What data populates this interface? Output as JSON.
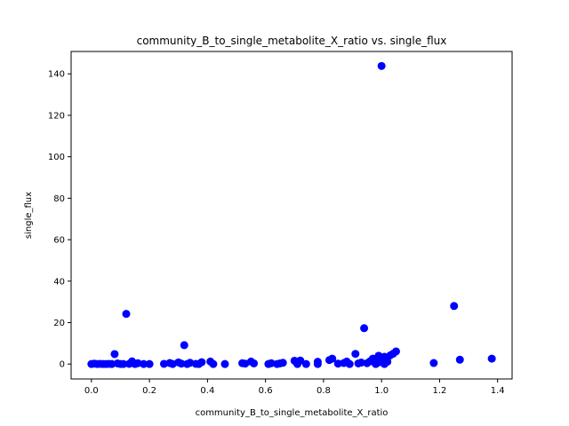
{
  "chart_data": {
    "type": "scatter",
    "title": "community_B_to_single_metabolite_X_ratio vs. single_flux",
    "xlabel": "community_B_to_single_metabolite_X_ratio",
    "ylabel": "single_flux",
    "xlim": [
      -0.07,
      1.45
    ],
    "ylim": [
      -7.2,
      150.8
    ],
    "xticks": [
      0.0,
      0.2,
      0.4,
      0.6,
      0.8,
      1.0,
      1.2,
      1.4
    ],
    "xtick_labels": [
      "0.0",
      "0.2",
      "0.4",
      "0.6",
      "0.8",
      "1.0",
      "1.2",
      "1.4"
    ],
    "yticks": [
      0,
      20,
      40,
      60,
      80,
      100,
      120,
      140
    ],
    "ytick_labels": [
      "0",
      "20",
      "40",
      "60",
      "80",
      "100",
      "120",
      "140"
    ],
    "grid": false,
    "legend": "none",
    "marker_color": "#0000ff",
    "points": [
      [
        0.0,
        0.0
      ],
      [
        0.01,
        0.2
      ],
      [
        0.02,
        0.0
      ],
      [
        0.03,
        0.1
      ],
      [
        0.04,
        0.0
      ],
      [
        0.05,
        0.0
      ],
      [
        0.06,
        0.1
      ],
      [
        0.07,
        0.0
      ],
      [
        0.08,
        4.8
      ],
      [
        0.09,
        0.3
      ],
      [
        0.1,
        0.0
      ],
      [
        0.11,
        0.0
      ],
      [
        0.12,
        24.2
      ],
      [
        0.13,
        0.1
      ],
      [
        0.14,
        1.3
      ],
      [
        0.15,
        0.0
      ],
      [
        0.16,
        0.4
      ],
      [
        0.18,
        0.0
      ],
      [
        0.2,
        0.0
      ],
      [
        0.25,
        0.1
      ],
      [
        0.27,
        0.5
      ],
      [
        0.28,
        0.0
      ],
      [
        0.3,
        0.8
      ],
      [
        0.31,
        0.2
      ],
      [
        0.32,
        9.1
      ],
      [
        0.33,
        0.0
      ],
      [
        0.34,
        0.6
      ],
      [
        0.36,
        0.1
      ],
      [
        0.37,
        0.0
      ],
      [
        0.38,
        0.9
      ],
      [
        0.41,
        1.2
      ],
      [
        0.42,
        0.0
      ],
      [
        0.46,
        0.0
      ],
      [
        0.52,
        0.4
      ],
      [
        0.53,
        0.2
      ],
      [
        0.55,
        1.2
      ],
      [
        0.56,
        0.3
      ],
      [
        0.61,
        0.0
      ],
      [
        0.62,
        0.4
      ],
      [
        0.64,
        0.0
      ],
      [
        0.65,
        0.3
      ],
      [
        0.66,
        0.6
      ],
      [
        0.7,
        1.6
      ],
      [
        0.71,
        0.0
      ],
      [
        0.72,
        1.7
      ],
      [
        0.74,
        0.0
      ],
      [
        0.78,
        1.1
      ],
      [
        0.78,
        0.0
      ],
      [
        0.82,
        1.9
      ],
      [
        0.83,
        2.6
      ],
      [
        0.85,
        0.2
      ],
      [
        0.87,
        0.5
      ],
      [
        0.88,
        1.2
      ],
      [
        0.89,
        0.0
      ],
      [
        0.91,
        4.9
      ],
      [
        0.92,
        0.3
      ],
      [
        0.93,
        0.7
      ],
      [
        0.94,
        17.3
      ],
      [
        0.95,
        0.4
      ],
      [
        0.96,
        1.3
      ],
      [
        0.97,
        2.6
      ],
      [
        0.98,
        0.0
      ],
      [
        0.99,
        4.0
      ],
      [
        0.99,
        0.8
      ],
      [
        1.0,
        2.1
      ],
      [
        1.0,
        143.8
      ],
      [
        1.01,
        0.0
      ],
      [
        1.01,
        3.5
      ],
      [
        1.02,
        1.1
      ],
      [
        1.02,
        3.0
      ],
      [
        1.03,
        4.2
      ],
      [
        1.04,
        5.0
      ],
      [
        1.05,
        6.1
      ],
      [
        1.18,
        0.5
      ],
      [
        1.25,
        28.0
      ],
      [
        1.27,
        2.1
      ],
      [
        1.38,
        2.6
      ]
    ]
  }
}
